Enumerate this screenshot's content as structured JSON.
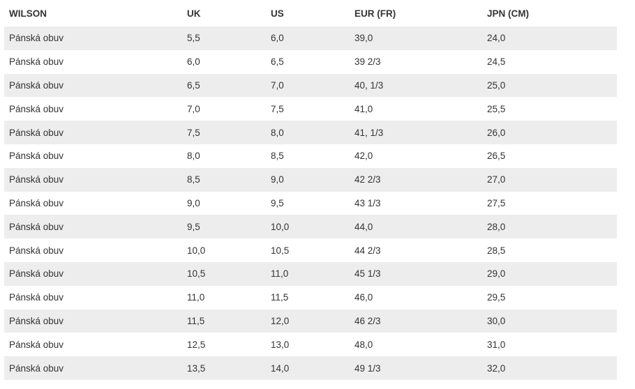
{
  "colors": {
    "page_background": "#ffffff",
    "row_alt_background": "#ededed",
    "text": "#333333"
  },
  "table": {
    "brand": "WILSON",
    "columns": [
      {
        "label": "WILSON"
      },
      {
        "label": "UK"
      },
      {
        "label": "US"
      },
      {
        "label": "EUR (FR)"
      },
      {
        "label": "JPN (CM)"
      }
    ],
    "rows": [
      {
        "category": "Pánská obuv",
        "uk": "5,5",
        "us": "6,0",
        "eur": "39,0",
        "jpn": "24,0"
      },
      {
        "category": "Pánská obuv",
        "uk": "6,0",
        "us": "6,5",
        "eur": "39 2/3",
        "jpn": "24,5"
      },
      {
        "category": "Pánská obuv",
        "uk": "6,5",
        "us": "7,0",
        "eur": "40, 1/3",
        "jpn": "25,0"
      },
      {
        "category": "Pánská obuv",
        "uk": "7,0",
        "us": "7,5",
        "eur": "41,0",
        "jpn": "25,5"
      },
      {
        "category": "Pánská obuv",
        "uk": "7,5",
        "us": "8,0",
        "eur": "41, 1/3",
        "jpn": "26,0"
      },
      {
        "category": "Pánská obuv",
        "uk": "8,0",
        "us": "8,5",
        "eur": "42,0",
        "jpn": "26,5"
      },
      {
        "category": "Pánská obuv",
        "uk": "8,5",
        "us": "9,0",
        "eur": "42 2/3",
        "jpn": "27,0"
      },
      {
        "category": "Pánská obuv",
        "uk": "9,0",
        "us": "9,5",
        "eur": "43 1/3",
        "jpn": "27,5"
      },
      {
        "category": "Pánská obuv",
        "uk": "9,5",
        "us": "10,0",
        "eur": "44,0",
        "jpn": "28,0"
      },
      {
        "category": "Pánská obuv",
        "uk": "10,0",
        "us": "10,5",
        "eur": "44 2/3",
        "jpn": "28,5"
      },
      {
        "category": "Pánská obuv",
        "uk": "10,5",
        "us": "11,0",
        "eur": "45 1/3",
        "jpn": "29,0"
      },
      {
        "category": "Pánská obuv",
        "uk": "11,0",
        "us": "11,5",
        "eur": "46,0",
        "jpn": "29,5"
      },
      {
        "category": "Pánská obuv",
        "uk": "11,5",
        "us": "12,0",
        "eur": "46 2/3",
        "jpn": "30,0"
      },
      {
        "category": "Pánská obuv",
        "uk": "12,5",
        "us": "13,0",
        "eur": "48,0",
        "jpn": "31,0"
      },
      {
        "category": "Pánská obuv",
        "uk": "13,5",
        "us": "14,0",
        "eur": "49 1/3",
        "jpn": "32,0"
      }
    ]
  }
}
